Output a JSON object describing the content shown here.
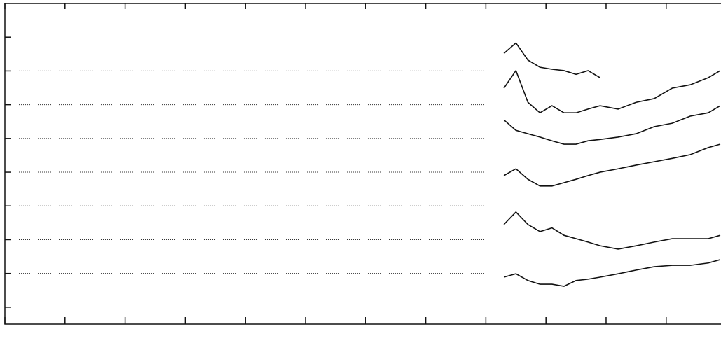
{
  "chart_data": {
    "type": "line",
    "x": [
      8.3,
      8.5,
      8.7,
      8.9,
      9.1,
      9.3,
      9.5,
      9.7,
      9.9,
      10.2,
      10.5,
      10.8,
      11.1,
      11.4,
      11.7,
      11.9
    ],
    "series": [
      {
        "color": "#111111",
        "values": [
          7.52,
          7.83,
          7.32,
          7.11,
          7.05,
          7.01,
          6.9,
          7.01,
          6.8,
          null,
          null,
          null,
          null,
          null,
          null,
          null
        ]
      },
      {
        "color": "#111111",
        "values": [
          6.49,
          7.01,
          6.07,
          5.76,
          5.97,
          5.76,
          5.76,
          5.87,
          5.97,
          5.87,
          6.07,
          6.18,
          6.49,
          6.59,
          6.8,
          7.01
        ]
      },
      {
        "color": "#111111",
        "values": [
          5.55,
          5.24,
          5.14,
          5.04,
          4.93,
          4.83,
          4.83,
          4.93,
          4.97,
          5.04,
          5.14,
          5.35,
          5.45,
          5.66,
          5.76,
          5.97
        ]
      },
      {
        "color": "#111111",
        "values": [
          3.9,
          4.1,
          3.79,
          3.59,
          3.59,
          3.69,
          3.79,
          3.9,
          4.0,
          4.1,
          4.21,
          4.31,
          4.41,
          4.52,
          4.73,
          4.83
        ]
      },
      {
        "color": "#111111",
        "values": [
          2.45,
          2.82,
          2.45,
          2.24,
          2.35,
          2.13,
          2.03,
          1.93,
          1.82,
          1.72,
          1.82,
          1.93,
          2.03,
          2.03,
          2.03,
          2.13
        ]
      },
      {
        "color": "#111111",
        "values": [
          0.89,
          0.99,
          0.79,
          0.68,
          0.68,
          0.62,
          0.79,
          0.83,
          0.89,
          0.99,
          1.1,
          1.2,
          1.24,
          1.24,
          1.31,
          1.41
        ]
      }
    ],
    "xlim": [
      0,
      11.9
    ],
    "xticks": [
      0,
      1,
      2,
      3,
      4,
      5,
      6,
      7,
      8,
      9,
      10,
      11
    ],
    "ylim": [
      -0.5,
      9
    ],
    "yticks": [
      0,
      1,
      2,
      3,
      4,
      5,
      6,
      7,
      8
    ],
    "grid": true
  }
}
